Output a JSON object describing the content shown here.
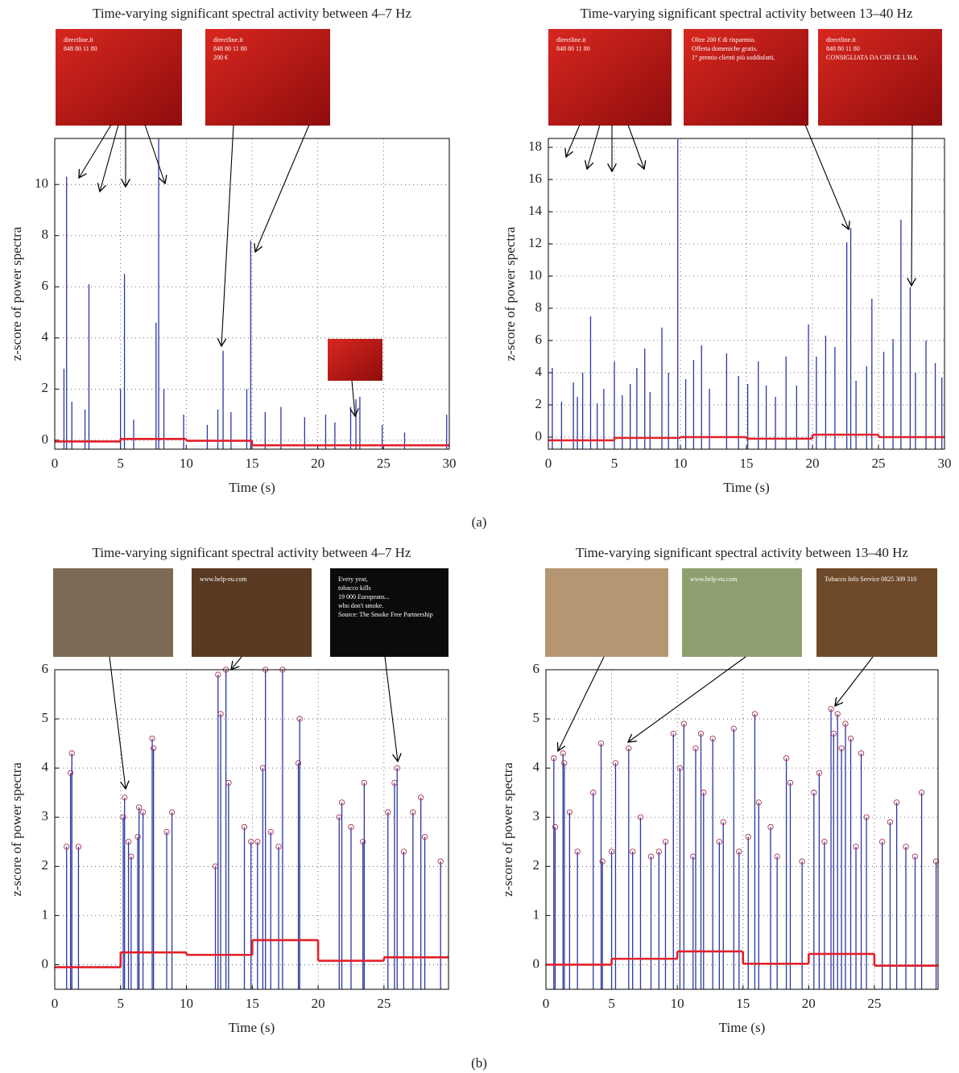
{
  "chart_data": [
    {
      "type": "stem",
      "title": "Time-varying significant spectral activity between 4–7 Hz",
      "xlabel": "Time (s)",
      "ylabel": "z-score of power spectra",
      "xlim": [
        0,
        30
      ],
      "ylim": [
        -0.35,
        11.8
      ],
      "xticks": [
        0,
        5,
        10,
        15,
        20,
        25,
        30
      ],
      "yticks": [
        0,
        2,
        4,
        6,
        8,
        10
      ],
      "grid": true,
      "image_texts": [
        [
          "directline.it",
          "848 80 11 80"
        ],
        [
          "directline.it",
          "848 80 11 80",
          "200 €"
        ]
      ],
      "series": [
        {
          "style": "stem",
          "color": "#2b37a3",
          "x": [
            0.7,
            0.9,
            1.3,
            2.3,
            2.6,
            5.0,
            5.3,
            6.0,
            7.7,
            7.9,
            8.3,
            9.8,
            11.6,
            12.4,
            12.8,
            13.4,
            14.6,
            14.9,
            16.0,
            17.2,
            19.0,
            20.6,
            21.3,
            22.5,
            22.9,
            23.2,
            24.9,
            26.6,
            29.8
          ],
          "values": [
            2.8,
            10.3,
            1.5,
            1.2,
            6.1,
            2.0,
            6.5,
            0.8,
            4.6,
            11.8,
            2.0,
            1.0,
            0.6,
            1.2,
            3.5,
            1.1,
            2.0,
            7.8,
            1.1,
            1.3,
            0.9,
            1.0,
            0.7,
            1.3,
            1.6,
            1.7,
            0.6,
            0.3,
            1.0
          ]
        },
        {
          "style": "step",
          "color": "#e3202a",
          "x": [
            0,
            5,
            10,
            15
          ],
          "values": [
            -0.05,
            0.05,
            -0.02,
            -0.2
          ]
        }
      ]
    },
    {
      "type": "stem",
      "title": "Time-varying significant spectral activity between 13–40 Hz",
      "xlabel": "Time (s)",
      "ylabel": "z-score of power spectra",
      "xlim": [
        0,
        30
      ],
      "ylim": [
        -0.75,
        18.55
      ],
      "xticks": [
        0,
        5,
        10,
        15,
        20,
        25,
        30
      ],
      "yticks": [
        0,
        2,
        4,
        6,
        8,
        10,
        12,
        14,
        16,
        18
      ],
      "grid": true,
      "image_texts": [
        [
          "directline.it",
          "848 80 11 80"
        ],
        [
          "Oltre 200 € di risparmio.",
          "Offerta domeniche gratis.",
          "1° premio clienti più soddisfatti."
        ],
        [
          "directline.it",
          "848 80 11 80",
          "CONSIGLIATA DA CHI CE L'HA."
        ]
      ],
      "series": [
        {
          "style": "stem",
          "color": "#2b37a3",
          "x": [
            0.3,
            1.0,
            1.9,
            2.2,
            2.6,
            3.2,
            3.7,
            4.2,
            5.0,
            5.6,
            6.2,
            6.7,
            7.3,
            7.7,
            8.6,
            9.1,
            9.8,
            10.4,
            11.0,
            11.6,
            12.2,
            13.5,
            14.4,
            15.1,
            15.9,
            16.5,
            17.2,
            18.0,
            18.8,
            19.7,
            20.3,
            21.0,
            21.7,
            22.6,
            22.9,
            23.3,
            24.1,
            24.5,
            25.4,
            26.1,
            26.7,
            27.4,
            27.8,
            28.6,
            29.3,
            29.8
          ],
          "values": [
            4.3,
            2.2,
            3.4,
            2.5,
            4.0,
            7.5,
            2.1,
            3.0,
            4.7,
            2.6,
            3.3,
            4.3,
            5.5,
            2.8,
            6.8,
            4.0,
            18.5,
            3.6,
            4.8,
            5.7,
            3.0,
            5.2,
            3.8,
            3.3,
            4.7,
            3.2,
            2.5,
            5.0,
            3.2,
            7.0,
            5.0,
            6.3,
            5.6,
            12.1,
            13.0,
            3.5,
            4.4,
            8.6,
            5.3,
            6.1,
            13.5,
            9.3,
            4.0,
            6.0,
            4.6,
            3.7
          ]
        },
        {
          "style": "step",
          "color": "#e3202a",
          "x": [
            0,
            5,
            10,
            15,
            20,
            25
          ],
          "values": [
            -0.2,
            -0.05,
            0.0,
            -0.1,
            0.15,
            0.0
          ]
        }
      ]
    },
    {
      "type": "stem",
      "title": "Time-varying significant spectral activity between 4–7 Hz",
      "xlabel": "Time (s)",
      "ylabel": "z-score of power spectra",
      "xlim": [
        0,
        29.9
      ],
      "ylim": [
        -0.5,
        6
      ],
      "xticks": [
        0,
        5,
        10,
        15,
        20,
        25
      ],
      "yticks": [
        0,
        1,
        2,
        3,
        4,
        5,
        6
      ],
      "grid": true,
      "image_texts": [
        [
          "www.help-eu.com"
        ],
        [
          "Every year,",
          "tobacco kills",
          "19 000 Europeans...",
          "who don't smoke.",
          "Source: The Smoke Free Partnership"
        ]
      ],
      "series": [
        {
          "style": "stem",
          "marker": "circle",
          "marker_color": "#b0304f",
          "color": "#2b37a3",
          "x": [
            0.9,
            1.2,
            1.3,
            1.8,
            5.2,
            5.3,
            5.6,
            5.8,
            6.3,
            6.4,
            6.7,
            7.4,
            7.5,
            8.5,
            8.9,
            12.2,
            12.4,
            12.6,
            13.0,
            13.2,
            14.4,
            14.9,
            15.4,
            15.8,
            16.0,
            16.4,
            17.0,
            17.3,
            18.5,
            18.6,
            21.6,
            21.8,
            22.5,
            23.4,
            23.5,
            25.3,
            25.8,
            26.0,
            26.5,
            27.2,
            27.8,
            28.1,
            29.3
          ],
          "values": [
            2.4,
            3.9,
            4.3,
            2.4,
            3.0,
            3.4,
            2.5,
            2.2,
            2.6,
            3.2,
            3.1,
            4.6,
            4.4,
            2.7,
            3.1,
            2.0,
            5.9,
            5.1,
            6.0,
            3.7,
            2.8,
            2.5,
            2.5,
            4.0,
            6.0,
            2.7,
            2.4,
            6.0,
            4.1,
            5.0,
            3.0,
            3.3,
            2.8,
            2.5,
            3.7,
            3.1,
            3.7,
            4.0,
            2.3,
            3.1,
            3.4,
            2.6,
            2.1
          ]
        },
        {
          "style": "step",
          "color": "#e3202a",
          "x": [
            0,
            5,
            10,
            15,
            20,
            25
          ],
          "values": [
            -0.05,
            0.25,
            0.2,
            0.5,
            0.08,
            0.15
          ]
        }
      ]
    },
    {
      "type": "stem",
      "title": "Time-varying significant spectral activity between 13–40 Hz",
      "xlabel": "Time (s)",
      "ylabel": "z-score of power spectra",
      "xlim": [
        0,
        29.85
      ],
      "ylim": [
        -0.5,
        6
      ],
      "xticks": [
        0,
        5,
        10,
        15,
        20,
        25
      ],
      "yticks": [
        0,
        1,
        2,
        3,
        4,
        5,
        6
      ],
      "grid": true,
      "image_texts": [
        [
          "www.help-eu.com"
        ],
        [
          "Tobacco Info Service 0825 309 310"
        ]
      ],
      "series": [
        {
          "style": "stem",
          "marker": "circle",
          "marker_color": "#b0304f",
          "color": "#2b37a3",
          "x": [
            0.6,
            0.7,
            1.3,
            1.4,
            1.8,
            2.4,
            3.6,
            4.2,
            4.3,
            5.0,
            5.3,
            6.3,
            6.6,
            7.2,
            8.0,
            8.6,
            9.1,
            9.7,
            10.2,
            10.5,
            11.2,
            11.4,
            11.8,
            12.0,
            12.7,
            13.2,
            13.5,
            14.3,
            14.7,
            15.4,
            15.9,
            16.2,
            17.1,
            17.6,
            18.3,
            18.6,
            19.5,
            20.4,
            20.8,
            21.2,
            21.7,
            21.9,
            22.2,
            22.5,
            22.8,
            23.2,
            23.6,
            24.0,
            24.4,
            25.6,
            26.2,
            26.7,
            27.4,
            28.1,
            28.6,
            29.7
          ],
          "values": [
            4.2,
            2.8,
            4.3,
            4.1,
            3.1,
            2.3,
            3.5,
            4.5,
            2.1,
            2.3,
            4.1,
            4.4,
            2.3,
            3.0,
            2.2,
            2.3,
            2.5,
            4.7,
            4.0,
            4.9,
            2.2,
            4.4,
            4.7,
            3.5,
            4.6,
            2.5,
            2.9,
            4.8,
            2.3,
            2.6,
            5.1,
            3.3,
            2.8,
            2.2,
            4.2,
            3.7,
            2.1,
            3.5,
            3.9,
            2.5,
            5.2,
            4.7,
            5.1,
            4.4,
            4.9,
            4.6,
            2.4,
            4.3,
            3.0,
            2.5,
            2.9,
            3.3,
            2.4,
            2.2,
            3.5,
            2.1
          ]
        },
        {
          "style": "step",
          "color": "#e3202a",
          "x": [
            0,
            5,
            10,
            15,
            20,
            25
          ],
          "values": [
            0.0,
            0.12,
            0.27,
            0.02,
            0.22,
            -0.02
          ]
        }
      ]
    }
  ],
  "figure_labels": [
    "(a)",
    "(b)"
  ]
}
